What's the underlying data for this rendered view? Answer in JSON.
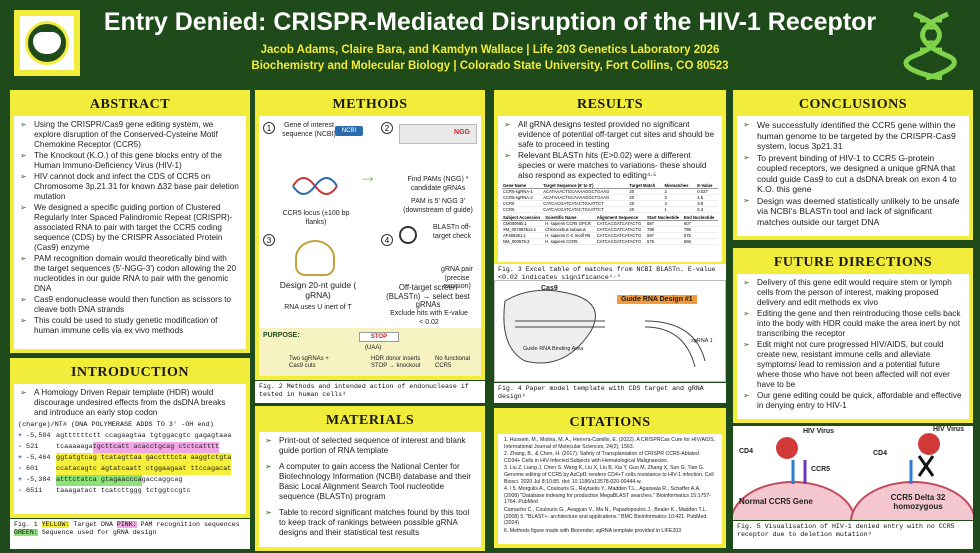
{
  "header": {
    "title": "Entry Denied: CRISPR-Mediated Disruption of the HIV-1 Receptor",
    "authors": "Jacob Adams, Claire Bara, and Kamdyn Wallace | Life 203 Genetics Laboratory 2026",
    "affiliation": "Biochemistry and Molecular Biology | Colorado State University, Fort Collins, CO 80523"
  },
  "abstract": {
    "title": "ABSTRACT",
    "items": [
      "Using the CRISPR/Cas9 gene editing system, we explore disruption of the Conserved-Cysteine Motif Chemokine Receptor (CCR5)",
      "The Knockout (K.O.) of this gene blocks entry of the Human Immuno-Deficiency Virus (HIV-1)",
      "HIV cannot dock and infect the CDS of CCR5 on Chromosome 3p.21.31 for known Δ32 base pair deletion mutation",
      "We designed a specific guiding portion of Clustered Regularly Inter Spaced Palindromic Repeat (CRISPR)-associated RNA to pair with target the CCR5 coding sequence (CDS) by the CRISPR Associated Protein (Cas9) enzyme",
      "PAM recognition domain would theoretically bind with the target sequences (5'-NGG-3') codon allowing the 20 nucleotides in our guide RNA to pair with the genomic DNA",
      "Cas9 endonuclease would then function as scissors to cleave both DNA strands",
      "This could be used to study genetic modification of human immune cells via ex vivo methods"
    ]
  },
  "introduction": {
    "title": "INTRODUCTION",
    "items": [
      "A Homology Driven Repair template (HDR) would discourage undesired effects from the dsDNA breaks and introduce an early stop codon"
    ],
    "seq_header": "(charge)/NT# (DNA POLYMERASE ADDS TO 3' -OH end)",
    "sequences": [
      {
        "sign": "+",
        "pos": "-5,504",
        "pre": "agttttttctt ccagaagtaa tgtggacgtc gagagtaa",
        "hl": "",
        "post": "a",
        "cls": "hl-y"
      },
      {
        "sign": "-",
        "pos": "521",
        "pre": "tcaaaaaga",
        "hl": "tgcttcatt acacctgcag ctctcatttt",
        "post": "",
        "cls": "hl-p"
      },
      {
        "sign": "+",
        "pos": "-5,464",
        "pre": "",
        "hl": "ggtatgtcag tcatagttaa gacctttcta aaggtctgta",
        "post": "",
        "cls": "hl-y"
      },
      {
        "sign": "-",
        "pos": "601",
        "pre": "",
        "hl": "ccatacagtc agtatcaatt ctggaagaat ttccagacat",
        "post": "",
        "cls": "hl-y"
      },
      {
        "sign": "+",
        "pos": "-5,384",
        "pre": "",
        "hl": "atttctatca gtagaaccca",
        "post": " gaccaggcag",
        "cls": "hl-g"
      },
      {
        "sign": "-",
        "pos": "6511",
        "pre": "taaagatact tcatcttggg tctggtccgtc",
        "hl": "",
        "post": "",
        "cls": "hl-y"
      }
    ],
    "caption_pre": "Fig. 1 ",
    "caption_y": "YELLOW:",
    "caption_mid": " Target DNA ",
    "caption_p": "PINK:",
    "caption_mid2": " PAM recognition sequences ",
    "caption_g": "GREEN:",
    "caption_end": " Sequence used for gRNA design"
  },
  "methods": {
    "title": "METHODS",
    "step1": "Gene of interest sequence (NCBI)",
    "ncbi": "NCBI",
    "ngg": "NGG",
    "find_pams": "Find PAMs (NGG) * candidate gRNAs",
    "pam_note": "PAM is 5' NGG 3' (downstream of guide)",
    "locus": "CCR5 locus (±100 bp flanks)",
    "blastn": "BLASTn off-target check",
    "design": "Design 20-nt guide ( gRNA)",
    "rna_note": "RNA uses U inert of T",
    "offtarget": "Off-target screen (BLASTn) → select best gRNAs",
    "exclude": "Exclude hits with E-value < 0.02",
    "gRNA_pair": "gRNA pair (precise excision)",
    "purpose": "PURPOSE:",
    "stop": "STOP",
    "uaa": "(UAA)",
    "two_sgrnas": "Two sgRNAs + Cas9 cuts",
    "hdr": "HDR donor inserts STOP → knockout",
    "no_func": "No functional CCR5",
    "caption": "Fig. 2 Methods and intended action of endonuclease if tested in human cells³"
  },
  "materials": {
    "title": "MATERIALS",
    "items": [
      "Print-out of selected sequence of interest and blank guide portion of RNA template",
      "A computer to gain access the National Center for Biotechnology Information (NCBI) database and their Basic Local Alignment Search Tool nucleotide sequence (BLASTn) program",
      "Table to record significant matches found by this tool to keep track of rankings between possible gRNA designs and their statistical test results"
    ]
  },
  "results": {
    "title": "RESULTS",
    "items": [
      "All gRNA designs tested provided no significant evidence of potential off-target cut sites and should be safe to proceed in testing",
      "Relevant BLASTn hits (E>0.02) were a different species or were matches to variations- these should also respond as expected to editing⁴·⁵"
    ],
    "table_headers": [
      "Gene Name",
      "Target Sequence (5' to 3')",
      "Target Match",
      "Mismatches",
      "E-Value"
    ],
    "table_rows": [
      [
        "CCR5-sgRNA-1",
        "ACATAAACTGCAAAAGGCTGAAG",
        "20",
        "2",
        "0.027"
      ],
      [
        "CCR5-sgRNA-2",
        "ACATAAACTGCAAAAGGCTGAAG",
        "20",
        "3",
        "4.5"
      ],
      [
        "CCR5",
        "CATCACGATCATACTGAATTCT",
        "20",
        "4",
        "3.8"
      ],
      [
        "CCR5",
        "CATCACGATCATACTGAATTCT",
        "20",
        "1",
        "6.3"
      ]
    ],
    "table2_headers": [
      "Subject Accession",
      "Scientific Name",
      "Alignment Sequence",
      "Start Nucleotide",
      "End Nucleotide"
    ],
    "table2_rows": [
      [
        "CM000665.1",
        "H. sapiens CCR5 GPCR",
        "CATCACGATCATACTG",
        "587",
        "607"
      ],
      [
        "XM_007893512.1",
        "Chlorocebus sabaeus",
        "CATCACGATCATACTG",
        "789",
        "788"
      ],
      [
        "AF488361.1",
        "H. sapiens C-C motif R5",
        "CATCACGATCATACTG",
        "597",
        "575"
      ],
      [
        "NM_000579.3",
        "H. sapiens CCR5",
        "CATCACGATCATACTG",
        "576",
        "566"
      ]
    ],
    "fig3_caption": "Fig. 3 Excel table of matches from NCBI BLASTn. E-value <0.02 indicates significance⁴·⁵",
    "cas9": "Cas9",
    "guide_label": "Guide RNA Design #1",
    "binding": "Guide RNA Binding Area",
    "sgrna": "sgRNA 1",
    "fig4_caption": "Fig. 4 Paper model template with CDS target and gRNA design⁶"
  },
  "citations": {
    "title": "CITATIONS",
    "items": [
      "1. Hussein, M., Molina, M. A., Herrera-Camillo, E. (2022). A CRISPRCas Cure for HIV/AIDS. International Journal of Molecular Sciences, 24(2), 1563.",
      "2. Zhang, B., & Chen, H. (2017). Safety of Transplantation of CRISPR CCR5-Ablated CD34+ Cells in HIV-Infected Subjects with Hematological Malignancies.",
      "3. Liu Z, Liang J, Chen S, Wang K, Liu X, Liu B, Xia Y, Guo M, Zhang X, Sun G, Tian G. Genome editing of CCR5 by AsCpf1 renders CD4+T cells resistance to HIV-1 infection. Cell Biosci. 2020 Jul 8;10:85. doi: 10.1186/s13578-020-00444-w.",
      "4. / 5. Morgulis A., Coulouris G., Raytselis Y., Madden T.L., Agarwala R., Schaffer A.A. (2008) \"Database indexing for production MegaBLAST searches.\" Bioinformatics 15:1757-1764. PubMed",
      "Camacho C., Coulouris G., Avagyan V., Ma N., Papadopoulos J., Bealer K., Madden T.L. (2008) 5. \"BLAST+: architecture and applications.\" BMC Bioinformatics 10:421. PubMed (2024)",
      "6. Methods figure made with Biorender, sgRNA template provided in LIFE203"
    ]
  },
  "conclusions": {
    "title": "CONCLUSIONS",
    "items": [
      "We successfully identified the CCR5 gene within the human genome to be targeted by the CRISPR-Cas9 system, locus 3p21.31",
      "To prevent binding of HIV-1 to CCR5 G-protein coupled receptors, we designed a unique gRNA that could guide Cas9 to cut a dsDNA break on exon 4 to K.O. this gene",
      "Design was deemed statistically unlikely to be unsafe via NCBI's BLASTn tool and lack of significant matches outside our target DNA"
    ]
  },
  "future": {
    "title": "FUTURE DIRECTIONS",
    "items": [
      "Delivery of this gene edit would require stem or lymph cells from the person of interest, making proposed delivery and edit methods ex vivo",
      "Editing the gene and then reintroducing those cells back into the body with HDR could make the area inert by not transcribing the receptor",
      "Edit might not cure progressed HIV/AIDS, but could create new, resistant immune cells and alleviate symptoms/ lead to remission and a potential future where those who have not been affected will not ever have to be",
      "Our gene editing could be quick, affordable and effective in denying entry to HIV-1"
    ]
  },
  "fig5": {
    "hiv_left": "HIV Virus",
    "hiv_right": "HIV Virus",
    "cd4_left": "CD4",
    "cd4_right": "CD4",
    "ccr5": "CCR5",
    "normal": "Normal CCR5 Gene",
    "delta": "CCR5 Delta 32 homozygous",
    "caption": "Fig. 5 Visualisation of HIV-1 denied entry with no CCR5 receptor due to deletion mutation³"
  }
}
